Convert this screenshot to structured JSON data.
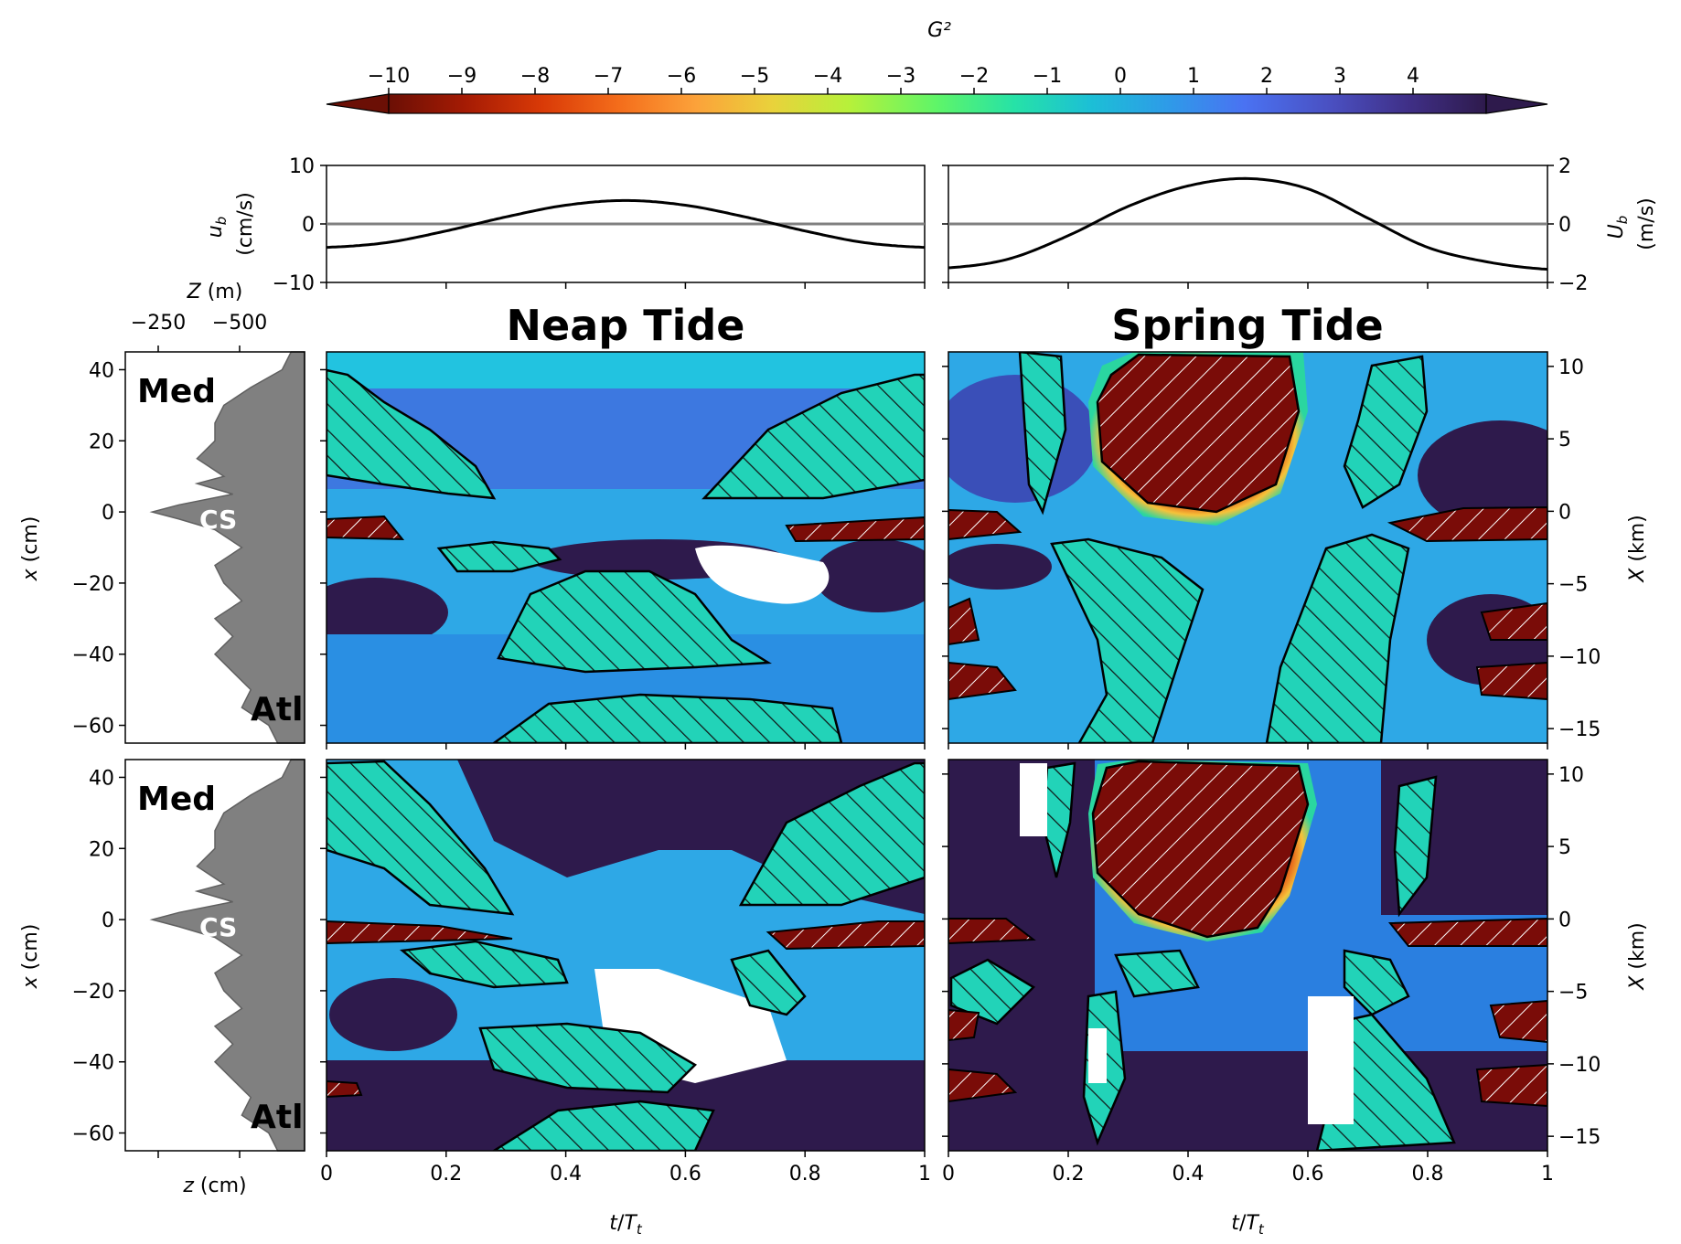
{
  "colorbar": {
    "label": "G²",
    "ticks": [
      "−10",
      "−9",
      "−8",
      "−7",
      "−6",
      "−5",
      "−4",
      "−3",
      "−2",
      "−1",
      "0",
      "1",
      "2",
      "3",
      "4"
    ],
    "range": [
      -10,
      5
    ],
    "extend": "both",
    "colormap": "turbo (reversed)",
    "colors": [
      "#6b0f05",
      "#a51b04",
      "#d93a07",
      "#f46d1b",
      "#fca23a",
      "#e9d23b",
      "#b6f13a",
      "#5ef569",
      "#26e2a7",
      "#1cbfd6",
      "#2e9be8",
      "#4a72f2",
      "#4a4fc0",
      "#3f2f86",
      "#2e1a4c"
    ]
  },
  "axes_text": {
    "ub_label": "u_b\n(cm/s)",
    "Ub_label": "U_b\n(m/s)",
    "ub_ticks": [
      "10",
      "0",
      "−10"
    ],
    "Ub_ticks": [
      "2",
      "0",
      "−2"
    ],
    "Z_label": "Z (m)",
    "Z_ticks": [
      "−250",
      "−500"
    ],
    "z_label": "z (cm)",
    "x_label": "x (cm)",
    "x_ticks": [
      "40",
      "20",
      "0",
      "−20",
      "−40",
      "−60"
    ],
    "X_label": "X (km)",
    "X_ticks": [
      "10",
      "5",
      "0",
      "−5",
      "−10",
      "−15"
    ],
    "t_label": "t/T_t",
    "t_ticks": [
      "0",
      "0.2",
      "0.4",
      "0.6",
      "0.8",
      "1"
    ]
  },
  "titles": {
    "neap": "Neap Tide",
    "spring": "Spring Tide"
  },
  "bathymetry_labels": {
    "med": "Med",
    "cs": "CS",
    "atl": "Atl"
  },
  "chart_data": [
    {
      "type": "line",
      "panel": "barotropic velocity, neap tide",
      "ylabel": "u_b (cm/s)",
      "ylim": [
        -10,
        10
      ],
      "x": [
        0,
        0.1,
        0.2,
        0.3,
        0.4,
        0.5,
        0.6,
        0.7,
        0.8,
        0.9,
        1.0
      ],
      "series": [
        {
          "values": [
            -4,
            -3.2,
            -1.2,
            1.2,
            3.2,
            4,
            3.2,
            1.2,
            -1.2,
            -3.2,
            -4
          ]
        }
      ],
      "reference_line_y": 0
    },
    {
      "type": "line",
      "panel": "barotropic velocity, spring tide",
      "ylabel": "U_b (m/s)",
      "ylim": [
        -2,
        2
      ],
      "x": [
        0,
        0.1,
        0.2,
        0.3,
        0.4,
        0.5,
        0.6,
        0.7,
        0.8,
        0.9,
        1.0
      ],
      "series": [
        {
          "values": [
            -1.5,
            -1.2,
            -0.4,
            0.6,
            1.3,
            1.55,
            1.2,
            0.2,
            -0.8,
            -1.3,
            -1.55
          ]
        }
      ],
      "reference_line_y": 0
    },
    {
      "type": "area",
      "panel": "bathymetry profile",
      "xlabel": "z (cm)",
      "ylabel": "x (cm)",
      "ylim": [
        -65,
        45
      ],
      "x": [
        45,
        40,
        35,
        30,
        25,
        20,
        15,
        10,
        8,
        5,
        2,
        0,
        -2,
        -5,
        -10,
        -15,
        -20,
        -25,
        -30,
        -35,
        -40,
        -45,
        -50,
        -55,
        -60,
        -65
      ],
      "values": [
        -3,
        -5,
        -12,
        -18,
        -20,
        -20,
        -24,
        -18,
        -24,
        -16,
        -28,
        -34,
        -28,
        -20,
        -14,
        -20,
        -18,
        -14,
        -20,
        -16,
        -20,
        -16,
        -12,
        -14,
        -8,
        -6
      ]
    },
    {
      "type": "heatmap",
      "panel": "G² neap tide (upper row)",
      "xlabel": "t/T_t",
      "ylabel": "x (cm)",
      "xlim": [
        0,
        1
      ],
      "ylim": [
        -65,
        45
      ]
    },
    {
      "type": "heatmap",
      "panel": "G² spring tide (upper row)",
      "xlabel": "t/T_t",
      "ylabel": "X (km)",
      "xlim": [
        0,
        1
      ],
      "ylim": [
        -16,
        11
      ]
    },
    {
      "type": "heatmap",
      "panel": "G² neap tide (lower row)",
      "xlabel": "t/T_t",
      "ylabel": "x (cm)",
      "xlim": [
        0,
        1
      ],
      "ylim": [
        -65,
        45
      ]
    },
    {
      "type": "heatmap",
      "panel": "G² spring tide (lower row)",
      "xlabel": "t/T_t",
      "ylabel": "X (km)",
      "xlim": [
        0,
        1
      ],
      "ylim": [
        -16,
        11
      ]
    }
  ]
}
